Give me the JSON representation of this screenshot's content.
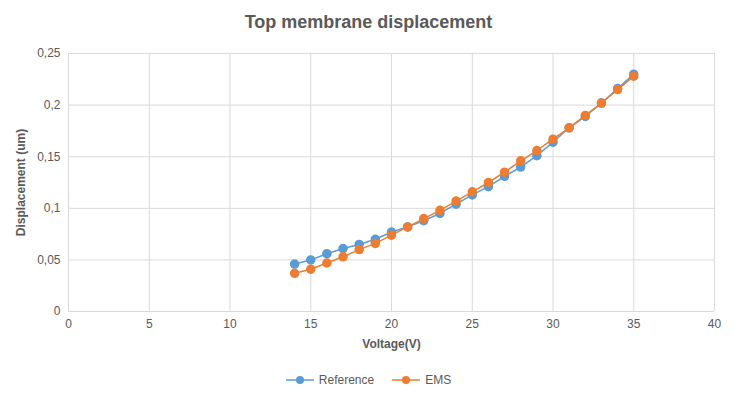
{
  "chart_data": {
    "type": "line",
    "title": "Top membrane displacement",
    "x_label": "Voltage(V)",
    "y_label": "Displacement (um)",
    "x": [
      14,
      15,
      16,
      17,
      18,
      19,
      20,
      21,
      22,
      23,
      24,
      25,
      26,
      27,
      28,
      29,
      30,
      31,
      32,
      33,
      34,
      35
    ],
    "series": [
      {
        "name": "Reference",
        "color": "#5b9bd5",
        "marker": "circle",
        "line_style": "solid",
        "values": [
          0.046,
          0.05,
          0.056,
          0.061,
          0.065,
          0.07,
          0.077,
          0.082,
          0.088,
          0.095,
          0.104,
          0.113,
          0.121,
          0.131,
          0.14,
          0.151,
          0.164,
          0.178,
          0.189,
          0.202,
          0.216,
          0.23
        ]
      },
      {
        "name": "EMS",
        "color": "#ed7d31",
        "marker": "circle",
        "line_style": "solid",
        "values": [
          0.037,
          0.041,
          0.047,
          0.053,
          0.06,
          0.066,
          0.074,
          0.082,
          0.09,
          0.098,
          0.107,
          0.116,
          0.125,
          0.135,
          0.146,
          0.156,
          0.167,
          0.178,
          0.19,
          0.202,
          0.215,
          0.228
        ]
      }
    ],
    "xlim": [
      0,
      40
    ],
    "xticks": [
      0,
      5,
      10,
      15,
      20,
      25,
      30,
      35,
      40
    ],
    "ylim": [
      0,
      0.25
    ],
    "yticks": [
      0,
      {
        "value": 0.05,
        "label": "0,05"
      },
      {
        "value": 0.1,
        "label": "0,1"
      },
      {
        "value": 0.15,
        "label": "0,15"
      },
      {
        "value": 0.2,
        "label": "0,2"
      },
      {
        "value": 0.25,
        "label": "0,25"
      }
    ],
    "grid": true,
    "legend": "bottom"
  }
}
